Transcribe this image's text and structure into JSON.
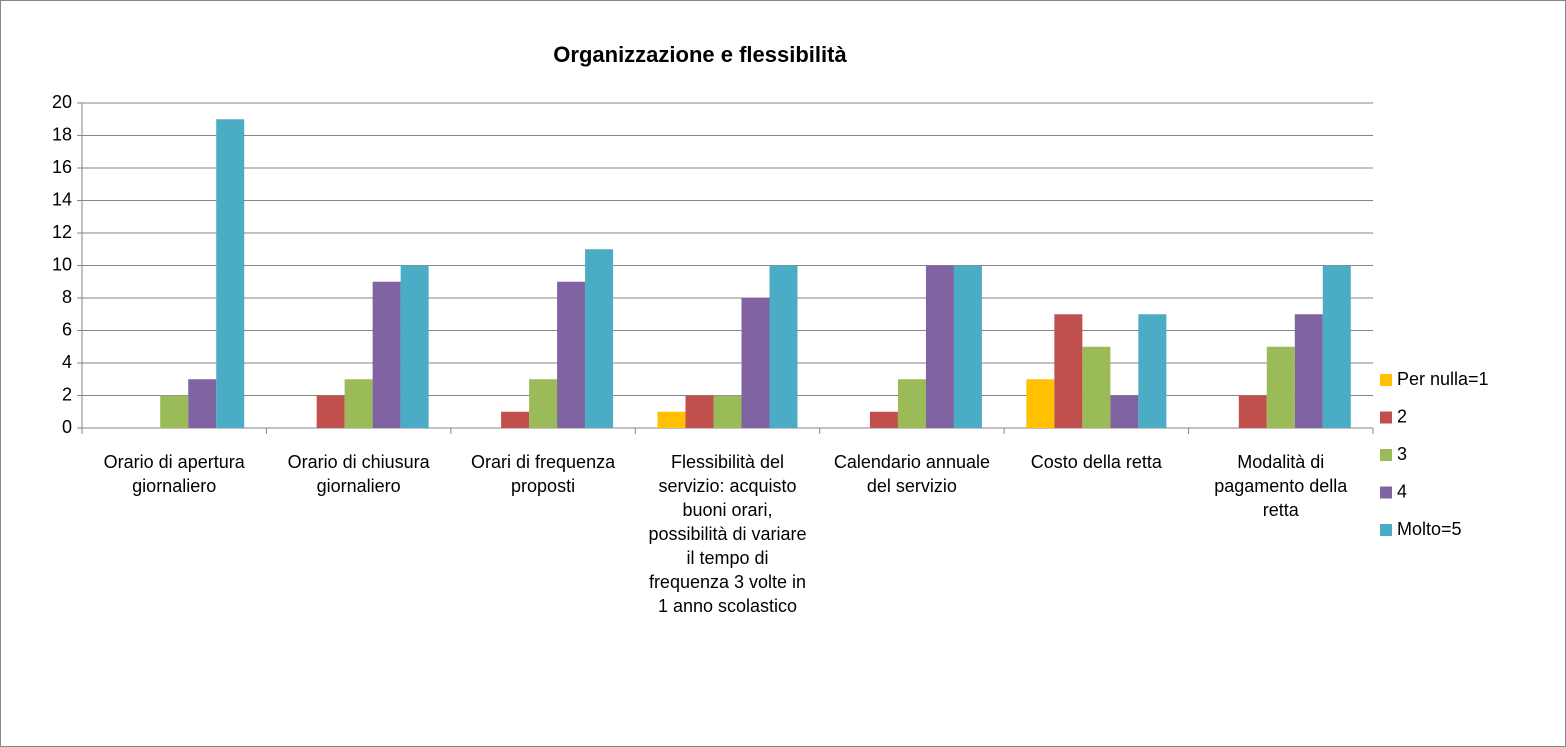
{
  "chart_data": {
    "type": "bar",
    "title": "Organizzazione e flessibilità",
    "categories": [
      "Orario di apertura giornaliero",
      "Orario di chiusura giornaliero",
      "Orari di frequenza proposti",
      "Flessibilità del servizio: acquisto buoni orari, possibilità di variare il tempo di frequenza 3 volte in 1 anno scolastico",
      "Calendario annuale del servizio",
      "Costo della retta",
      "Modalità di pagamento della retta"
    ],
    "series": [
      {
        "name": "Per nulla=1",
        "color": "#FFC000",
        "values": [
          0,
          0,
          0,
          1,
          0,
          3,
          0
        ]
      },
      {
        "name": "2",
        "color": "#C0504D",
        "values": [
          0,
          2,
          1,
          2,
          1,
          7,
          2
        ]
      },
      {
        "name": "3",
        "color": "#9BBB59",
        "values": [
          2,
          3,
          3,
          2,
          3,
          5,
          5
        ]
      },
      {
        "name": "4",
        "color": "#8064A2",
        "values": [
          3,
          9,
          9,
          8,
          10,
          2,
          7
        ]
      },
      {
        "name": "Molto=5",
        "color": "#4BACC6",
        "values": [
          19,
          10,
          11,
          10,
          10,
          7,
          10
        ]
      }
    ],
    "ylim": [
      0,
      20
    ],
    "yticks": [
      0,
      2,
      4,
      6,
      8,
      10,
      12,
      14,
      16,
      18,
      20
    ],
    "grid": true,
    "legend": "right"
  }
}
